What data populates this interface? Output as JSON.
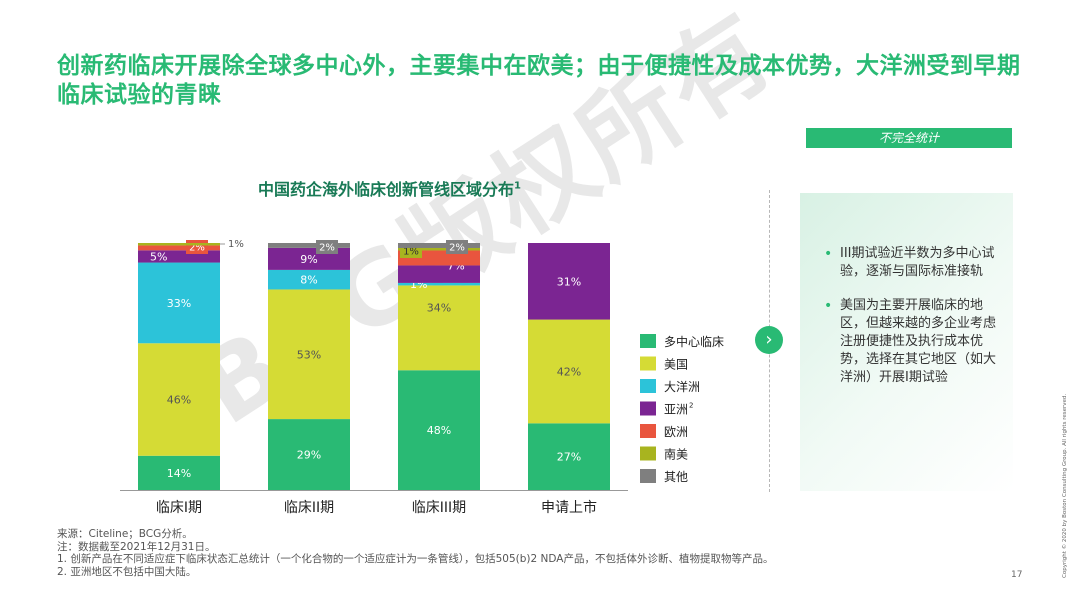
{
  "title": "创新药临床开展除全球多中心外，主要集中在欧美；由于便捷性及成本优势，大洋洲受到早期临床试验的青睐",
  "note_tag": "不完全统计",
  "watermark": "BCG版权所有",
  "arrow_icon": "›",
  "colors": {
    "多中心临床": "#29BA74",
    "美国": "#D5DB35",
    "大洋洲": "#2CC3D9",
    "亚洲": "#7B2592",
    "欧洲": "#E9553E",
    "南美": "#A8B41F",
    "其他": "#7F7F7F"
  },
  "chart_data": {
    "type": "bar",
    "stacked": true,
    "percent": true,
    "title": "中国药企海外临床创新管线区域分布",
    "title_sup": "1",
    "categories": [
      "临床I期",
      "临床II期",
      "临床III期",
      "申请上市"
    ],
    "series": [
      {
        "name": "多中心临床",
        "values": [
          14,
          29,
          48,
          27
        ],
        "labels": [
          "14%",
          "29%",
          "48%",
          "27%"
        ]
      },
      {
        "name": "美国",
        "values": [
          46,
          53,
          34,
          42
        ],
        "labels": [
          "46%",
          "53%",
          "34%",
          "42%"
        ]
      },
      {
        "name": "大洋洲",
        "values": [
          33,
          8,
          1,
          0
        ],
        "labels": [
          "33%",
          "8%",
          "1%",
          ""
        ]
      },
      {
        "name": "亚洲",
        "name_sup": "2",
        "values": [
          5,
          9,
          7,
          31
        ],
        "labels": [
          "5%",
          "9%",
          "7%",
          "31%"
        ]
      },
      {
        "name": "欧洲",
        "values": [
          2,
          0,
          6,
          0
        ],
        "labels": [
          "2%",
          "",
          "",
          ""
        ]
      },
      {
        "name": "南美",
        "values": [
          1,
          0,
          1,
          0
        ],
        "labels": [
          "1%",
          "",
          "1%",
          ""
        ]
      },
      {
        "name": "其他",
        "values": [
          0,
          2,
          2,
          0
        ],
        "labels": [
          "",
          "2%",
          "2%",
          ""
        ]
      }
    ],
    "ylim": [
      0,
      100
    ],
    "legend_position": "right",
    "grid": false
  },
  "panel": {
    "bullets": [
      "III期试验近半数为多中心试验，逐渐与国际标准接轨",
      "美国为主要开展临床的地区，但越来越的多企业考虑注册便捷性及执行成本优势，选择在其它地区（如大洋洲）开展I期试验"
    ]
  },
  "footnotes": [
    "来源：Citeline；BCG分析。",
    "注：数据截至2021年12月31日。",
    "1. 创新产品在不同适应症下临床状态汇总统计（一个化合物的一个适应症计为一条管线），包括505(b)2 NDA产品，不包括体外诊断、植物提取物等产品。",
    "2. 亚洲地区不包括中国大陆。"
  ],
  "page_number": "17",
  "copyright": "Copyright © 2020 by Boston Consulting Group. All rights reserved."
}
